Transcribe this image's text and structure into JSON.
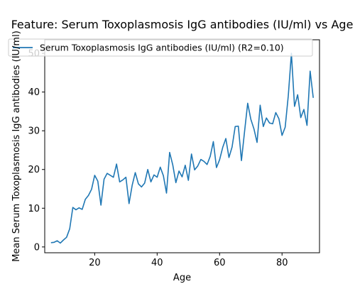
{
  "chart_data": {
    "type": "line",
    "title": "Feature: Serum Toxoplasmosis IgG antibodies (IU/ml) vs Age",
    "xlabel": "Age",
    "ylabel": "Mean Serum Toxoplasmosis IgG antibodies (IU/ml)",
    "xlim": [
      4,
      92
    ],
    "ylim": [
      -1.5,
      53.5
    ],
    "xticks": [
      20,
      40,
      60,
      80
    ],
    "yticks": [
      0,
      10,
      20,
      30,
      40,
      50
    ],
    "grid": false,
    "legend_position": "top-center",
    "series": [
      {
        "name": "Serum Toxoplasmosis IgG antibodies (IU/ml) (R2=0.10)",
        "color": "#1f77b4",
        "x": [
          6,
          7,
          8,
          9,
          10,
          11,
          12,
          13,
          14,
          15,
          16,
          17,
          18,
          19,
          20,
          21,
          22,
          23,
          24,
          25,
          26,
          27,
          28,
          29,
          30,
          31,
          32,
          33,
          34,
          35,
          36,
          37,
          38,
          39,
          40,
          41,
          42,
          43,
          44,
          45,
          46,
          47,
          48,
          49,
          50,
          51,
          52,
          53,
          54,
          55,
          56,
          57,
          58,
          59,
          60,
          61,
          62,
          63,
          64,
          65,
          66,
          67,
          68,
          69,
          70,
          71,
          72,
          73,
          74,
          75,
          76,
          77,
          78,
          79,
          80,
          81,
          82,
          83,
          84,
          85,
          86,
          87,
          88,
          89,
          90
        ],
        "y": [
          1.1,
          1.2,
          1.6,
          1.0,
          1.8,
          2.5,
          4.7,
          10.2,
          9.6,
          10.1,
          9.7,
          12.3,
          13.3,
          14.9,
          18.5,
          17.0,
          10.8,
          17.5,
          19.0,
          18.5,
          18.0,
          21.4,
          16.8,
          17.3,
          18.0,
          11.2,
          15.9,
          19.2,
          16.3,
          15.5,
          16.5,
          20.0,
          16.8,
          18.6,
          18.0,
          20.6,
          18.4,
          13.9,
          24.4,
          21.2,
          16.6,
          19.6,
          18.1,
          21.1,
          17.2,
          24.0,
          19.9,
          20.9,
          22.6,
          22.1,
          21.3,
          23.4,
          27.2,
          20.5,
          22.5,
          25.7,
          28.0,
          23.1,
          25.8,
          31.1,
          31.2,
          22.3,
          29.8,
          37.1,
          33.0,
          30.5,
          27.0,
          36.6,
          31.1,
          33.3,
          32.0,
          31.8,
          34.7,
          33.1,
          28.8,
          30.9,
          39.0,
          50.0,
          36.3,
          39.3,
          33.4,
          35.5,
          31.4,
          45.4,
          38.5
        ]
      }
    ]
  }
}
